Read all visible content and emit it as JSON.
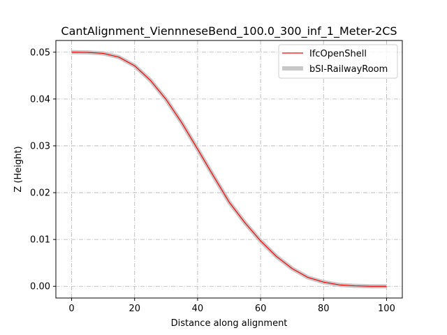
{
  "chart_data": {
    "type": "line",
    "title": "CantAlignment_ViennneseBend_100.0_300_inf_1_Meter-2CS",
    "xlabel": "Distance along alignment",
    "ylabel": "Z (Height)",
    "xlim": [
      -5,
      105
    ],
    "ylim": [
      -0.0025,
      0.0525
    ],
    "xticks": [
      0,
      20,
      40,
      60,
      80,
      100
    ],
    "yticks": [
      0.0,
      0.01,
      0.02,
      0.03,
      0.04,
      0.05
    ],
    "xtick_labels": [
      "0",
      "20",
      "40",
      "60",
      "80",
      "100"
    ],
    "ytick_labels": [
      "0.00",
      "0.01",
      "0.02",
      "0.03",
      "0.04",
      "0.05"
    ],
    "grid": true,
    "legend_position": "top-right",
    "series": [
      {
        "name": "IfcOpenShell",
        "color": "#ff0000",
        "x": [
          0,
          5,
          10,
          15,
          20,
          25,
          30,
          35,
          40,
          45,
          50,
          55,
          60,
          65,
          70,
          75,
          80,
          85,
          90,
          95,
          100
        ],
        "y": [
          0.05,
          0.04996,
          0.04975,
          0.04895,
          0.0471,
          0.044,
          0.0399,
          0.0349,
          0.0293,
          0.0236,
          0.018,
          0.0136,
          0.0097,
          0.0064,
          0.0038,
          0.0019,
          0.0009,
          0.0003,
          0.0001,
          0.0,
          0.0
        ]
      },
      {
        "name": "bSI-RailwayRoom",
        "color": "#c8c8c8",
        "x": [
          0,
          5,
          10,
          15,
          20,
          25,
          30,
          35,
          40,
          45,
          50,
          55,
          60,
          65,
          70,
          75,
          80,
          85,
          90,
          95,
          100
        ],
        "y": [
          0.05,
          0.04996,
          0.04975,
          0.04895,
          0.0471,
          0.044,
          0.0399,
          0.0349,
          0.0293,
          0.0236,
          0.018,
          0.0136,
          0.0097,
          0.0064,
          0.0038,
          0.0019,
          0.0009,
          0.0003,
          0.0001,
          0.0,
          0.0
        ]
      }
    ]
  }
}
